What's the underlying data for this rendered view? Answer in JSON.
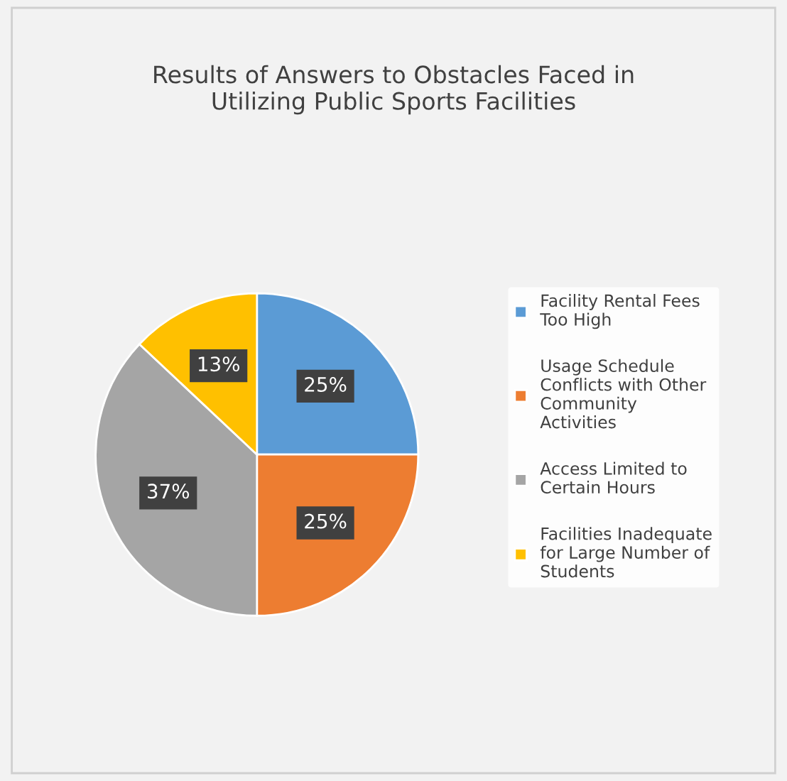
{
  "chart_data": {
    "type": "pie",
    "title": "Results of Answers to Obstacles Faced in\nUtilizing Public Sports Facilities",
    "categories": [
      "Facility Rental Fees\nToo High",
      "Usage Schedule\nConflicts with Other\nCommunity\nActivities",
      "Access Limited to\nCertain Hours",
      "Facilities Inadequate\nfor Large Number of\nStudents"
    ],
    "values": [
      25,
      25,
      37,
      13
    ],
    "colors": [
      "#5b9bd5",
      "#ed7d31",
      "#a5a5a5",
      "#ffc000"
    ],
    "value_labels": [
      "25%",
      "25%",
      "37%",
      "13%"
    ],
    "legend": "right"
  }
}
